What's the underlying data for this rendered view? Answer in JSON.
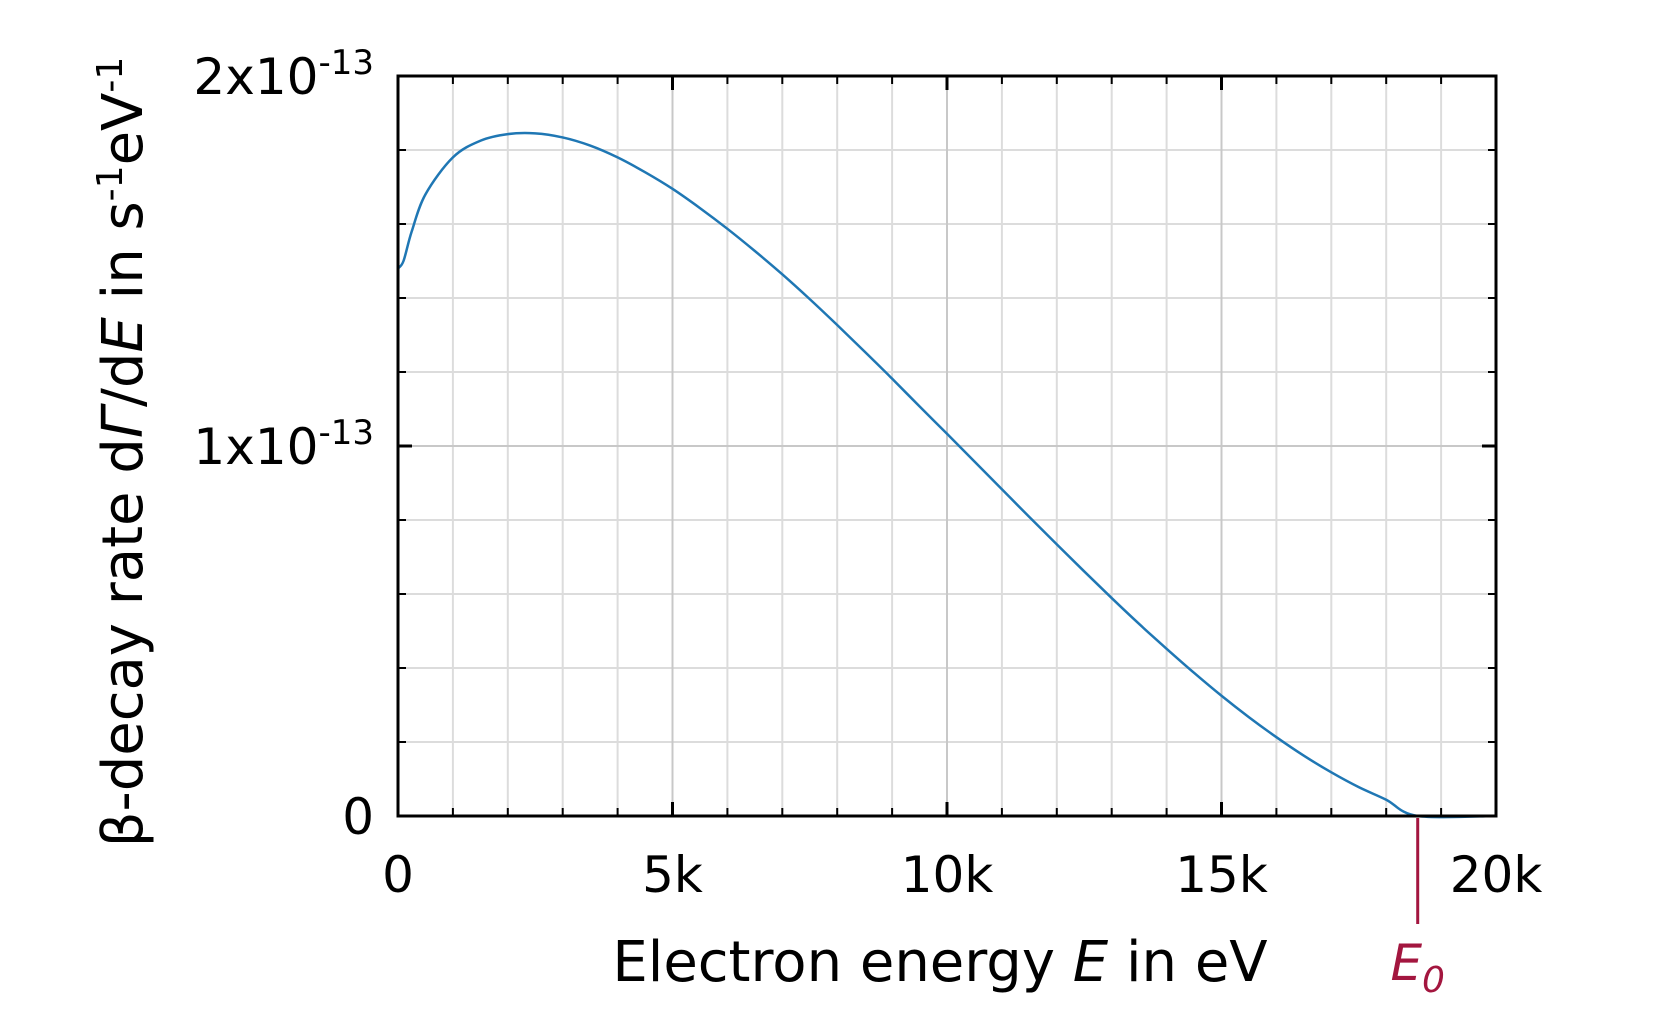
{
  "chart_data": {
    "type": "line",
    "title": "",
    "xlabel": {
      "pre": "Electron energy ",
      "var": "E",
      "post": " in eV"
    },
    "ylabel": {
      "pre": "β-decay rate d",
      "var1": "Γ",
      "mid": "/d",
      "var2": "E",
      "post": " in s",
      "sup1": "-1",
      "post2": "eV",
      "sup2": "-1"
    },
    "xlim": [
      0,
      20000
    ],
    "ylim": [
      0,
      2e-13
    ],
    "x_ticks": [
      {
        "value": 0,
        "label": "0"
      },
      {
        "value": 5000,
        "label": "5k"
      },
      {
        "value": 10000,
        "label": "10k"
      },
      {
        "value": 15000,
        "label": "15k"
      },
      {
        "value": 20000,
        "label": "20k"
      }
    ],
    "y_ticks": [
      {
        "value": 0,
        "mantissa": "0",
        "exp": ""
      },
      {
        "value": 1e-13,
        "mantissa": "1x10",
        "exp": "-13"
      },
      {
        "value": 2e-13,
        "mantissa": "2x10",
        "exp": "-13"
      }
    ],
    "grid": true,
    "series": [
      {
        "color": "#1f77b4",
        "x": [
          0,
          100,
          250,
          500,
          1000,
          1500,
          2000,
          2500,
          3000,
          3500,
          4000,
          4500,
          5000,
          5500,
          6000,
          6500,
          7000,
          7500,
          8000,
          8500,
          9000,
          9500,
          10000,
          10500,
          11000,
          11500,
          12000,
          12500,
          13000,
          13500,
          14000,
          14500,
          15000,
          15500,
          16000,
          16500,
          17000,
          17500,
          18000,
          18574,
          20000
        ],
        "y": [
          1.48e-13,
          1.5e-13,
          1.58e-13,
          1.68e-13,
          1.78e-13,
          1.825e-13,
          1.843e-13,
          1.845e-13,
          1.834e-13,
          1.812e-13,
          1.78e-13,
          1.74e-13,
          1.695e-13,
          1.643e-13,
          1.587e-13,
          1.527e-13,
          1.464e-13,
          1.397e-13,
          1.327e-13,
          1.255e-13,
          1.182e-13,
          1.107e-13,
          1.033e-13,
          9.58e-14,
          8.83e-14,
          8.08e-14,
          7.34e-14,
          6.61e-14,
          5.89e-14,
          5.19e-14,
          4.52e-14,
          3.87e-14,
          3.25e-14,
          2.67e-14,
          2.13e-14,
          1.63e-14,
          1.18e-14,
          7.8e-15,
          4.4e-15,
          0.0,
          0.0
        ]
      }
    ],
    "annotations": [
      {
        "x": 18574,
        "base": "E",
        "sub": "0",
        "color": "#a3163f"
      }
    ]
  }
}
